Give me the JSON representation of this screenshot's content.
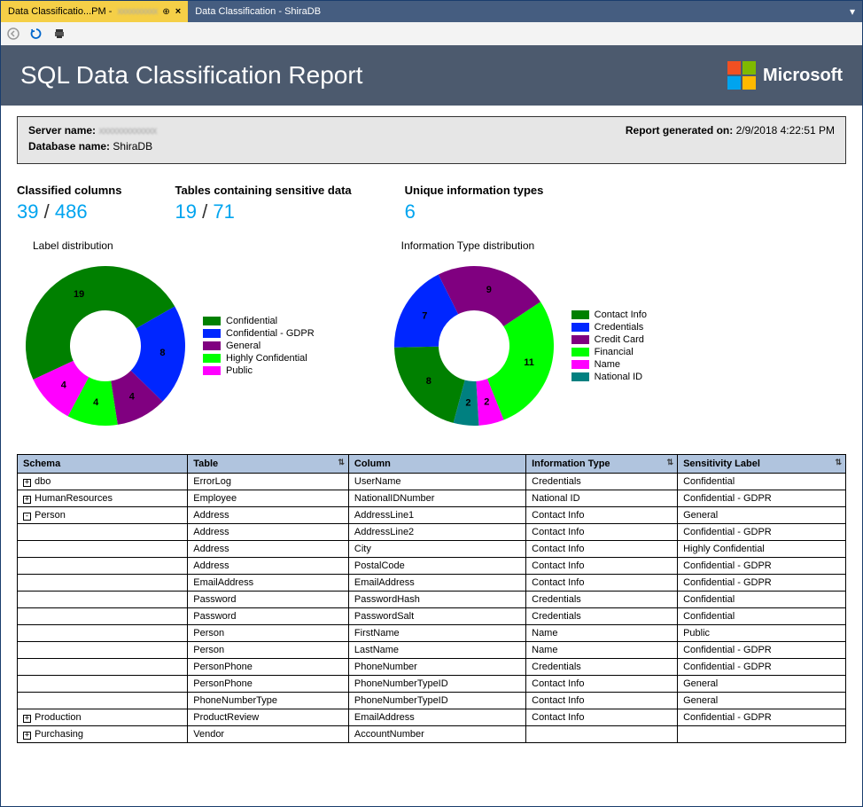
{
  "tabs": [
    {
      "label": "Data Classificatio...PM - ",
      "suffix_blurred": "xxxxxxxxxx",
      "active": true,
      "pinned": true,
      "closable": true
    },
    {
      "label": "Data Classification - ShiraDB",
      "active": false
    }
  ],
  "report": {
    "title": "SQL Data Classification Report",
    "brand": "Microsoft",
    "server_label": "Server name:",
    "server_value_blurred": "xxxxxxxxxxxxx",
    "db_label": "Database name:",
    "db_value": "ShiraDB",
    "generated_label": "Report generated on:",
    "generated_value": "2/9/2018 4:22:51 PM"
  },
  "stats": {
    "classified_label": "Classified columns",
    "classified_a": "39",
    "classified_b": "486",
    "tables_label": "Tables containing sensitive data",
    "tables_a": "19",
    "tables_b": "71",
    "types_label": "Unique information types",
    "types_a": "6"
  },
  "chart_label": {
    "title": "Label distribution",
    "type": "donut",
    "inner_radius": 40,
    "outer_radius": 90,
    "background_color": "#ffffff",
    "slices": [
      {
        "label": "Confidential",
        "value": 19,
        "color": "#008000"
      },
      {
        "label": "Confidential - GDPR",
        "value": 8,
        "color": "#0026ff"
      },
      {
        "label": "General",
        "value": 4,
        "color": "#800080"
      },
      {
        "label": "Highly Confidential",
        "value": 4,
        "color": "#00ff00"
      },
      {
        "label": "Public",
        "value": 4,
        "color": "#ff00ff"
      }
    ]
  },
  "chart_type": {
    "title": "Information Type distribution",
    "type": "donut",
    "inner_radius": 40,
    "outer_radius": 90,
    "background_color": "#ffffff",
    "slices": [
      {
        "label": "Contact Info",
        "value": 8,
        "color": "#008000"
      },
      {
        "label": "Credentials",
        "value": 7,
        "color": "#0026ff"
      },
      {
        "label": "Credit Card",
        "value": 9,
        "color": "#800080"
      },
      {
        "label": "Financial",
        "value": 11,
        "color": "#00ff00"
      },
      {
        "label": "Name",
        "value": 2,
        "color": "#ff00ff"
      },
      {
        "label": "National ID",
        "value": 2,
        "color": "#008080"
      }
    ]
  },
  "table": {
    "columns": [
      "Schema",
      "Table",
      "Column",
      "Information Type",
      "Sensitivity Label"
    ],
    "sortable": [
      false,
      true,
      false,
      true,
      true
    ],
    "rows": [
      {
        "schema": "dbo",
        "expand": "+",
        "table": "ErrorLog",
        "column": "UserName",
        "info": "Credentials",
        "label": "Confidential"
      },
      {
        "schema": "HumanResources",
        "expand": "+",
        "table": "Employee",
        "column": "NationalIDNumber",
        "info": "National ID",
        "label": "Confidential - GDPR"
      },
      {
        "schema": "Person",
        "expand": "-",
        "table": "Address",
        "column": "AddressLine1",
        "info": "Contact Info",
        "label": "General"
      },
      {
        "schema": "",
        "expand": "",
        "table": "Address",
        "column": "AddressLine2",
        "info": "Contact Info",
        "label": "Confidential - GDPR"
      },
      {
        "schema": "",
        "expand": "",
        "table": "Address",
        "column": "City",
        "info": "Contact Info",
        "label": "Highly Confidential"
      },
      {
        "schema": "",
        "expand": "",
        "table": "Address",
        "column": "PostalCode",
        "info": "Contact Info",
        "label": "Confidential - GDPR"
      },
      {
        "schema": "",
        "expand": "",
        "table": "EmailAddress",
        "column": "EmailAddress",
        "info": "Contact Info",
        "label": "Confidential - GDPR"
      },
      {
        "schema": "",
        "expand": "",
        "table": "Password",
        "column": "PasswordHash",
        "info": "Credentials",
        "label": "Confidential"
      },
      {
        "schema": "",
        "expand": "",
        "table": "Password",
        "column": "PasswordSalt",
        "info": "Credentials",
        "label": "Confidential"
      },
      {
        "schema": "",
        "expand": "",
        "table": "Person",
        "column": "FirstName",
        "info": "Name",
        "label": "Public"
      },
      {
        "schema": "",
        "expand": "",
        "table": "Person",
        "column": "LastName",
        "info": "Name",
        "label": "Confidential - GDPR"
      },
      {
        "schema": "",
        "expand": "",
        "table": "PersonPhone",
        "column": "PhoneNumber",
        "info": "Credentials",
        "label": "Confidential - GDPR"
      },
      {
        "schema": "",
        "expand": "",
        "table": "PersonPhone",
        "column": "PhoneNumberTypeID",
        "info": "Contact Info",
        "label": "General"
      },
      {
        "schema": "",
        "expand": "",
        "table": "PhoneNumberType",
        "column": "PhoneNumberTypeID",
        "info": "Contact Info",
        "label": "General"
      },
      {
        "schema": "Production",
        "expand": "+",
        "table": "ProductReview",
        "column": "EmailAddress",
        "info": "Contact Info",
        "label": "Confidential - GDPR"
      },
      {
        "schema": "Purchasing",
        "expand": "+",
        "table": "Vendor",
        "column": "AccountNumber",
        "info": "",
        "label": ""
      }
    ]
  }
}
